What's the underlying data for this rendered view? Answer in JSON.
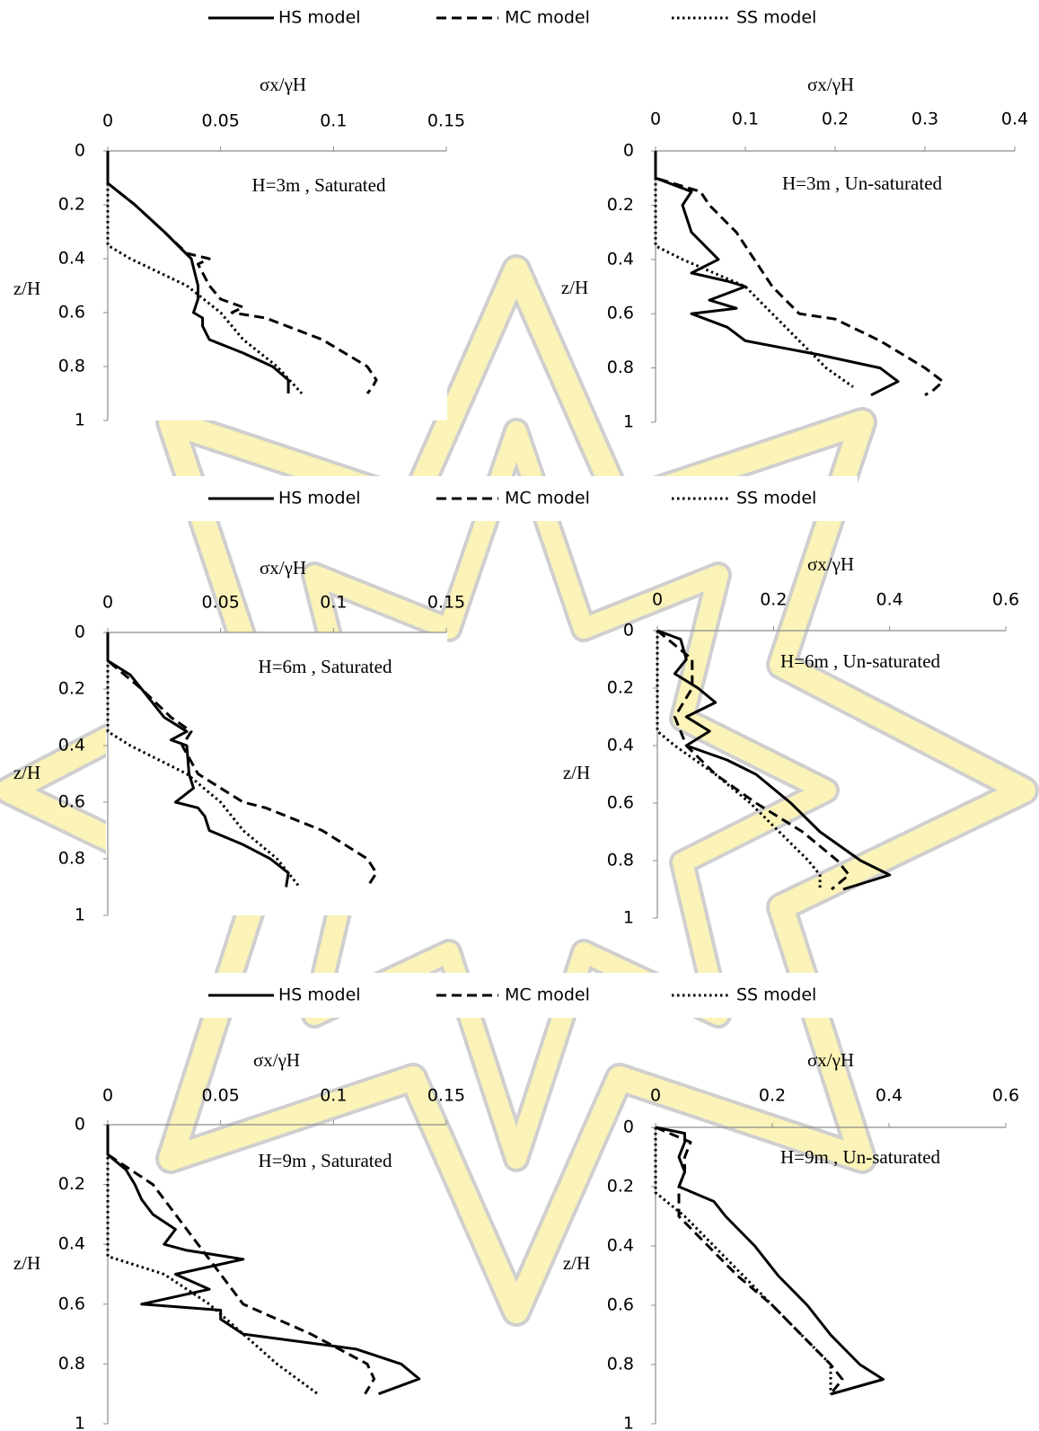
{
  "legends": [
    [
      "HS model",
      "MC model",
      "SS model"
    ],
    [
      "HS model",
      "MC model",
      "SS model"
    ],
    [
      "HS model",
      "MC model",
      "SS model"
    ]
  ],
  "chart_data": [
    {
      "type": "line",
      "title": "H=3m , Saturated",
      "x_label": "σx/γH",
      "y_label": "z/H",
      "xlim": [
        0,
        0.15
      ],
      "xticks": [
        0,
        0.05,
        0.1,
        0.15
      ],
      "ylim": [
        0,
        1
      ],
      "yticks": [
        0,
        0.2,
        0.4,
        0.6,
        0.8,
        1
      ],
      "y_inverted": true,
      "series": [
        {
          "color": "#000",
          "dash": "solid",
          "z": [
            0,
            0.12,
            0.2,
            0.3,
            0.4,
            0.5,
            0.55,
            0.6,
            0.62,
            0.65,
            0.7,
            0.75,
            0.8,
            0.85,
            0.9
          ],
          "values": [
            0,
            0,
            0.012,
            0.025,
            0.037,
            0.04,
            0.04,
            0.038,
            0.042,
            0.042,
            0.045,
            0.06,
            0.073,
            0.08,
            0.08
          ]
        },
        {
          "color": "#000",
          "dash": "dashed",
          "z": [
            0,
            0.12,
            0.2,
            0.3,
            0.38,
            0.4,
            0.42,
            0.5,
            0.55,
            0.58,
            0.6,
            0.62,
            0.7,
            0.8,
            0.85,
            0.88,
            0.9
          ],
          "values": [
            0,
            0,
            0.012,
            0.025,
            0.035,
            0.045,
            0.04,
            0.045,
            0.05,
            0.06,
            0.055,
            0.07,
            0.095,
            0.115,
            0.119,
            0.117,
            0.115
          ]
        },
        {
          "color": "#000",
          "dash": "dotted",
          "z": [
            0,
            0.35,
            0.4,
            0.5,
            0.6,
            0.7,
            0.8,
            0.9
          ],
          "values": [
            0,
            0,
            0.01,
            0.035,
            0.05,
            0.06,
            0.075,
            0.086
          ]
        }
      ]
    },
    {
      "type": "line",
      "title": "H=3m , Un-saturated",
      "x_label": "σx/γH",
      "y_label": "z/H",
      "xlim": [
        0,
        0.4
      ],
      "xticks": [
        0,
        0.1,
        0.2,
        0.3,
        0.4
      ],
      "ylim": [
        0,
        1
      ],
      "yticks": [
        0,
        0.2,
        0.4,
        0.6,
        0.8,
        1
      ],
      "y_inverted": true,
      "series": [
        {
          "color": "#000",
          "dash": "solid",
          "z": [
            0,
            0.1,
            0.15,
            0.2,
            0.3,
            0.4,
            0.45,
            0.48,
            0.5,
            0.55,
            0.58,
            0.6,
            0.65,
            0.7,
            0.75,
            0.8,
            0.85,
            0.9
          ],
          "values": [
            0,
            0,
            0.04,
            0.03,
            0.04,
            0.07,
            0.04,
            0.08,
            0.1,
            0.06,
            0.09,
            0.04,
            0.08,
            0.1,
            0.18,
            0.25,
            0.27,
            0.24
          ]
        },
        {
          "color": "#000",
          "dash": "dashed",
          "z": [
            0,
            0.1,
            0.15,
            0.2,
            0.3,
            0.4,
            0.5,
            0.6,
            0.62,
            0.7,
            0.8,
            0.85,
            0.88,
            0.9
          ],
          "values": [
            0,
            0,
            0.05,
            0.06,
            0.09,
            0.11,
            0.13,
            0.16,
            0.2,
            0.25,
            0.3,
            0.32,
            0.31,
            0.3
          ]
        },
        {
          "color": "#000",
          "dash": "dotted",
          "z": [
            0,
            0.35,
            0.4,
            0.5,
            0.6,
            0.7,
            0.8,
            0.87
          ],
          "values": [
            0,
            0,
            0.03,
            0.1,
            0.13,
            0.16,
            0.19,
            0.22
          ]
        }
      ]
    },
    {
      "type": "line",
      "title": "H=6m , Saturated",
      "x_label": "σx/γH",
      "y_label": "z/H",
      "xlim": [
        0,
        0.15
      ],
      "xticks": [
        0,
        0.05,
        0.1,
        0.15
      ],
      "ylim": [
        0,
        1
      ],
      "yticks": [
        0,
        0.2,
        0.4,
        0.6,
        0.8,
        1
      ],
      "y_inverted": true,
      "series": [
        {
          "color": "#000",
          "dash": "solid",
          "z": [
            0,
            0.1,
            0.15,
            0.2,
            0.25,
            0.3,
            0.35,
            0.38,
            0.4,
            0.5,
            0.55,
            0.6,
            0.62,
            0.65,
            0.7,
            0.75,
            0.8,
            0.85,
            0.9
          ],
          "values": [
            0,
            0,
            0.01,
            0.015,
            0.02,
            0.025,
            0.035,
            0.028,
            0.035,
            0.036,
            0.038,
            0.03,
            0.04,
            0.043,
            0.045,
            0.06,
            0.072,
            0.08,
            0.079
          ]
        },
        {
          "color": "#000",
          "dash": "dashed",
          "z": [
            0,
            0.1,
            0.2,
            0.3,
            0.35,
            0.4,
            0.5,
            0.55,
            0.6,
            0.62,
            0.7,
            0.8,
            0.85,
            0.9
          ],
          "values": [
            0,
            0,
            0.015,
            0.028,
            0.037,
            0.033,
            0.04,
            0.05,
            0.06,
            0.07,
            0.095,
            0.115,
            0.119,
            0.115
          ]
        },
        {
          "color": "#000",
          "dash": "dotted",
          "z": [
            0,
            0.35,
            0.4,
            0.5,
            0.6,
            0.7,
            0.8,
            0.9
          ],
          "values": [
            0,
            0,
            0.01,
            0.035,
            0.05,
            0.06,
            0.075,
            0.085
          ]
        }
      ]
    },
    {
      "type": "line",
      "title": "H=6m , Un-saturated",
      "x_label": "σx/γH",
      "y_label": "z/H",
      "xlim": [
        0,
        0.6
      ],
      "xticks": [
        0,
        0.2,
        0.4,
        0.6
      ],
      "ylim": [
        0,
        1
      ],
      "yticks": [
        0,
        0.2,
        0.4,
        0.6,
        0.8,
        1
      ],
      "y_inverted": true,
      "series": [
        {
          "color": "#000",
          "dash": "solid",
          "z": [
            0,
            0.03,
            0.1,
            0.15,
            0.2,
            0.25,
            0.3,
            0.35,
            0.4,
            0.45,
            0.5,
            0.6,
            0.7,
            0.8,
            0.85,
            0.9
          ],
          "values": [
            0,
            0.04,
            0.05,
            0.03,
            0.07,
            0.1,
            0.05,
            0.09,
            0.05,
            0.12,
            0.17,
            0.23,
            0.28,
            0.35,
            0.4,
            0.32
          ]
        },
        {
          "color": "#000",
          "dash": "dashed",
          "z": [
            0,
            0.1,
            0.2,
            0.3,
            0.4,
            0.5,
            0.6,
            0.7,
            0.8,
            0.85,
            0.9
          ],
          "values": [
            0,
            0.06,
            0.06,
            0.03,
            0.05,
            0.1,
            0.17,
            0.25,
            0.31,
            0.33,
            0.3
          ]
        },
        {
          "color": "#000",
          "dash": "dotted",
          "z": [
            0,
            0.35,
            0.4,
            0.5,
            0.6,
            0.7,
            0.8,
            0.85,
            0.9
          ],
          "values": [
            0,
            0,
            0.03,
            0.1,
            0.16,
            0.21,
            0.26,
            0.28,
            0.28
          ]
        }
      ]
    },
    {
      "type": "line",
      "title": "H=9m , Saturated",
      "x_label": "σx/γH",
      "y_label": "z/H",
      "xlim": [
        0,
        0.15
      ],
      "xticks": [
        0,
        0.05,
        0.1,
        0.15
      ],
      "ylim": [
        0,
        1
      ],
      "yticks": [
        0,
        0.2,
        0.4,
        0.6,
        0.8,
        1
      ],
      "y_inverted": true,
      "series": [
        {
          "color": "#000",
          "dash": "solid",
          "z": [
            0,
            0.1,
            0.15,
            0.2,
            0.25,
            0.3,
            0.35,
            0.4,
            0.42,
            0.45,
            0.5,
            0.55,
            0.6,
            0.62,
            0.65,
            0.7,
            0.75,
            0.8,
            0.85,
            0.9
          ],
          "values": [
            0,
            0,
            0.008,
            0.012,
            0.015,
            0.02,
            0.03,
            0.025,
            0.035,
            0.06,
            0.03,
            0.045,
            0.015,
            0.05,
            0.05,
            0.06,
            0.11,
            0.13,
            0.138,
            0.12
          ]
        },
        {
          "color": "#000",
          "dash": "dashed",
          "z": [
            0,
            0.1,
            0.2,
            0.3,
            0.4,
            0.5,
            0.6,
            0.7,
            0.8,
            0.85,
            0.9
          ],
          "values": [
            0,
            0,
            0.02,
            0.03,
            0.04,
            0.05,
            0.06,
            0.09,
            0.115,
            0.118,
            0.114
          ]
        },
        {
          "color": "#000",
          "dash": "dotted",
          "z": [
            0,
            0.44,
            0.5,
            0.6,
            0.7,
            0.8,
            0.9
          ],
          "values": [
            0,
            0,
            0.025,
            0.045,
            0.06,
            0.075,
            0.093
          ]
        }
      ]
    },
    {
      "type": "line",
      "title": "H=9m , Un-saturated",
      "x_label": "σx/γH",
      "y_label": "z/H",
      "xlim": [
        0,
        0.6
      ],
      "xticks": [
        0,
        0.2,
        0.4,
        0.6
      ],
      "ylim": [
        0,
        1
      ],
      "yticks": [
        0,
        0.2,
        0.4,
        0.6,
        0.8,
        1
      ],
      "y_inverted": true,
      "series": [
        {
          "color": "#000",
          "dash": "solid",
          "z": [
            0,
            0.02,
            0.05,
            0.1,
            0.15,
            0.2,
            0.25,
            0.3,
            0.4,
            0.5,
            0.6,
            0.7,
            0.8,
            0.85,
            0.9
          ],
          "values": [
            0,
            0.05,
            0.05,
            0.04,
            0.05,
            0.04,
            0.1,
            0.12,
            0.17,
            0.21,
            0.26,
            0.3,
            0.35,
            0.39,
            0.3
          ]
        },
        {
          "color": "#000",
          "dash": "dashed",
          "z": [
            0,
            0.05,
            0.1,
            0.15,
            0.2,
            0.3,
            0.4,
            0.5,
            0.6,
            0.7,
            0.8,
            0.85,
            0.9
          ],
          "values": [
            0,
            0.06,
            0.05,
            0.05,
            0.04,
            0.04,
            0.09,
            0.14,
            0.2,
            0.25,
            0.3,
            0.32,
            0.3
          ]
        },
        {
          "color": "#000",
          "dash": "dotted",
          "z": [
            0,
            0.22,
            0.3,
            0.4,
            0.5,
            0.6,
            0.7,
            0.8,
            0.9
          ],
          "values": [
            0,
            0,
            0.05,
            0.1,
            0.15,
            0.2,
            0.25,
            0.3,
            0.3
          ]
        }
      ]
    }
  ]
}
